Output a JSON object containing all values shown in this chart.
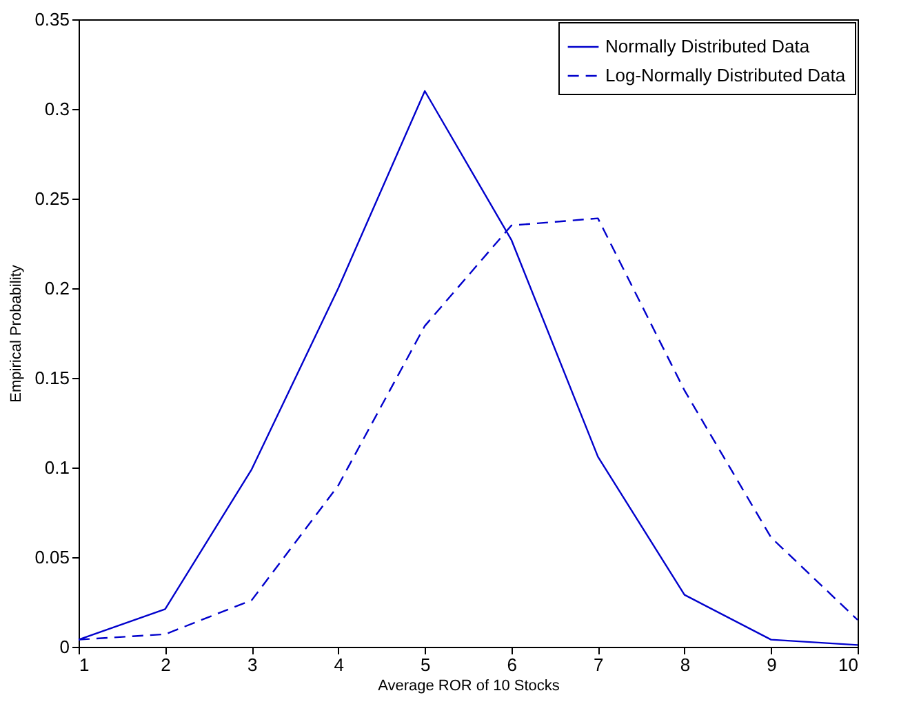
{
  "chart_data": {
    "type": "line",
    "xlabel": "Average ROR of 10 Stocks",
    "ylabel": "Empirical Probability",
    "x": [
      1,
      2,
      3,
      4,
      5,
      6,
      7,
      8,
      9,
      10
    ],
    "series": [
      {
        "name": "Normally Distributed Data",
        "color": "#0000cc",
        "line_style": "solid",
        "values": [
          0.004,
          0.021,
          0.099,
          0.2,
          0.31,
          0.227,
          0.106,
          0.029,
          0.004,
          0.001
        ]
      },
      {
        "name": "Log-Normally Distributed Data",
        "color": "#0000cc",
        "line_style": "dashed",
        "values": [
          0.004,
          0.007,
          0.026,
          0.09,
          0.179,
          0.235,
          0.239,
          0.143,
          0.061,
          0.015
        ]
      }
    ],
    "xlim": [
      1,
      10
    ],
    "xticks": [
      1,
      2,
      3,
      4,
      5,
      6,
      7,
      8,
      9,
      10
    ],
    "ylim": [
      0,
      0.35
    ],
    "yticks": [
      0,
      0.05,
      0.1,
      0.15,
      0.2,
      0.25,
      0.3,
      0.35
    ],
    "grid": false,
    "legend": "top right",
    "marker": "none"
  }
}
